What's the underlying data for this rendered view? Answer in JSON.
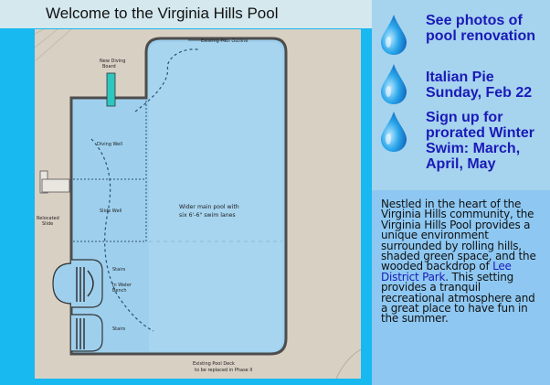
{
  "header": {
    "title": "Welcome to the Virginia Hills Pool"
  },
  "plan": {
    "labels": {
      "existing_outline": "Existing Pool Outline",
      "new_diving_board_1": "New Diving",
      "new_diving_board_2": "Board",
      "diving_well": "Diving Well",
      "relocated_slide_1": "Relocated",
      "relocated_slide_2": "Slide",
      "slide_well": "Slide Well",
      "main_pool_1": "Wider main pool with",
      "main_pool_2": "six 6'-6\" swim lanes",
      "stairs_top": "Stairs",
      "in_water_bench_1": "In Water",
      "in_water_bench_2": "Bench",
      "stairs_bottom": "Stairs",
      "deck_1": "Existing Pool Deck",
      "deck_2": "to be replaced in Phase II"
    }
  },
  "news": [
    {
      "text": "See photos of pool renovation",
      "icon": "water-drop-icon"
    },
    {
      "text": "Italian Pie Sunday, Feb 22",
      "icon": "water-drop-icon"
    },
    {
      "text": "Sign up for prorated Winter Swim: March, April, May",
      "icon": "water-drop-icon"
    }
  ],
  "about": {
    "before": "Nestled in the heart of the Virginia Hills community, the Virginia Hills Pool provides a unique environment surrounded by rolling hills, shaded green space, and the wooded backdrop of ",
    "link": "Lee District Park",
    "after": ". This setting provides a tranquil recreational atmosphere and a great place to have fun in the summer."
  },
  "colors": {
    "accent_blue": "#18b8f0",
    "link_blue": "#1a1ab8",
    "news_bg": "#a6d3ee",
    "about_bg": "#8ec8f2",
    "pool_water": "#9ed0ee",
    "deck": "#d9d0c4"
  }
}
